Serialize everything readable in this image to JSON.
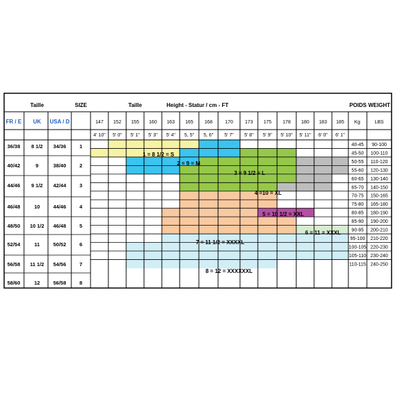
{
  "chart_data": {
    "type": "table",
    "headers": {
      "taille": "Taille",
      "size": "SIZE",
      "taille_height": "Taille",
      "height_title": "Height - Statur / cm  - FT",
      "poids": "POIDS",
      "weight": "WEIGHT",
      "fr_e": "FR / E",
      "uk": "UK",
      "usa_d": "USA /  D",
      "kg": "Kg",
      "lbs": "LBS"
    },
    "heights_cm": [
      "147",
      "152",
      "155",
      "160",
      "163",
      "165",
      "168",
      "170",
      "173",
      "175",
      "178",
      "180",
      "183",
      "185"
    ],
    "heights_ft": [
      "4' 10\"",
      "5' 0\"",
      "5' 1\"",
      "5' 3\"",
      "5' 4\"",
      "5, 5\"",
      "5, 6\"",
      "5' 7\"",
      "5' 8\"",
      "5' 9\"",
      "5' 10\"",
      "5' 11\"",
      "6' 0\"",
      "6' 1''"
    ],
    "rows": [
      {
        "fr": "36/38",
        "uk": "8 1/2",
        "usa": "34/36",
        "size": "1"
      },
      {
        "fr": "40/42",
        "uk": "9",
        "usa": "38/40",
        "size": "2"
      },
      {
        "fr": "44/46",
        "uk": "9 1/2",
        "usa": "42/44",
        "size": "3"
      },
      {
        "fr": "46/48",
        "uk": "10",
        "usa": "44/46",
        "size": "4"
      },
      {
        "fr": "48/50",
        "uk": "10 1/2",
        "usa": "46/48",
        "size": "5"
      },
      {
        "fr": "52/54",
        "uk": "11",
        "usa": "50/52",
        "size": "6"
      },
      {
        "fr": "56/58",
        "uk": "11 1/2",
        "usa": "54/56",
        "size": "7"
      },
      {
        "fr": "58/60",
        "uk": "12",
        "usa": "56/58",
        "size": "8"
      }
    ],
    "weights": [
      {
        "kg": "40-45",
        "lbs": "90-100"
      },
      {
        "kg": "45-50",
        "lbs": "100-110"
      },
      {
        "kg": "50-55",
        "lbs": "110-120"
      },
      {
        "kg": "55-60",
        "lbs": "120-130"
      },
      {
        "kg": "60-65",
        "lbs": "130-140"
      },
      {
        "kg": "65-70",
        "lbs": "140-150"
      },
      {
        "kg": "70-75",
        "lbs": "150-165"
      },
      {
        "kg": "75-80",
        "lbs": "165-180"
      },
      {
        "kg": "80-85",
        "lbs": "180-190"
      },
      {
        "kg": "85-90",
        "lbs": "190-200"
      },
      {
        "kg": "90-95",
        "lbs": "200-210"
      },
      {
        "kg": "95-100",
        "lbs": "210-220"
      },
      {
        "kg": "100-105",
        "lbs": "220-230"
      },
      {
        "kg": "105-110",
        "lbs": "230-240"
      },
      {
        "kg": "110-115",
        "lbs": "240-250"
      }
    ],
    "zones": [
      {
        "label": "1 = 8 1/2 = S",
        "color": "#f7f3a5",
        "cells": [
          [
            0,
            1,
            6
          ],
          [
            1,
            0,
            5
          ]
        ]
      },
      {
        "label": "2 = 9 = M",
        "color": "#3bc4ef",
        "cells": [
          [
            0,
            6,
            8
          ],
          [
            1,
            5,
            10
          ],
          [
            2,
            2,
            6
          ],
          [
            3,
            2,
            5
          ]
        ]
      },
      {
        "label": "3 = 9 1/2 = L",
        "color": "#95c84a",
        "cells": [
          [
            1,
            8,
            11
          ],
          [
            2,
            6,
            11
          ],
          [
            3,
            5,
            11
          ],
          [
            4,
            5,
            11
          ],
          [
            5,
            5,
            10
          ]
        ]
      },
      {
        "label": "4 =10 = XL",
        "color": "#bdbdbd",
        "cells": [
          [
            2,
            11,
            14
          ],
          [
            3,
            11,
            14
          ],
          [
            4,
            11,
            13
          ],
          [
            5,
            10,
            13
          ],
          [
            6,
            5,
            10
          ]
        ]
      },
      {
        "label": "5 = 10 1/2 = XXL",
        "color": "#b64ea3",
        "cells": [
          [
            4,
            13,
            15
          ],
          [
            5,
            13,
            15
          ],
          [
            6,
            10,
            15
          ],
          [
            7,
            10,
            15
          ],
          [
            8,
            9,
            12
          ]
        ]
      },
      {
        "label": "6 = 11 = XXXL",
        "color": "#d7ecd0",
        "cells": [
          [
            8,
            12,
            15
          ],
          [
            9,
            11,
            15
          ],
          [
            10,
            11,
            14
          ]
        ]
      },
      {
        "label": "7 = 11 1/2 = XXXXL",
        "color": "#f9c9a0",
        "cells": [
          [
            6,
            5,
            10
          ],
          [
            7,
            5,
            10
          ],
          [
            8,
            4,
            9
          ],
          [
            9,
            4,
            11
          ],
          [
            10,
            4,
            11
          ]
        ]
      },
      {
        "label": "8 = 12 = XXXXXXL",
        "color": "#d1eef6",
        "cells": [
          [
            11,
            4,
            14
          ],
          [
            12,
            2,
            14
          ],
          [
            13,
            2,
            14
          ],
          [
            14,
            2,
            10
          ]
        ]
      }
    ]
  }
}
